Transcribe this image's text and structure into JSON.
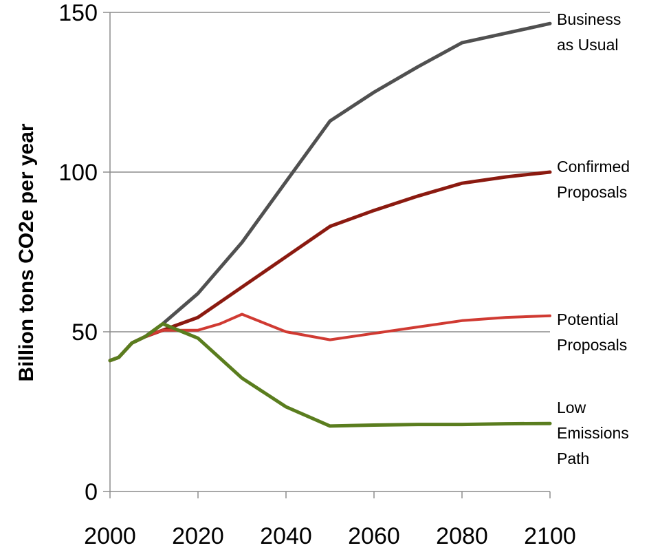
{
  "chart_data": {
    "type": "line",
    "title": "",
    "xlabel": "",
    "ylabel": "Billion tons CO2e per year",
    "xlim": [
      2000,
      2100
    ],
    "ylim": [
      0,
      150
    ],
    "x_ticks": [
      "2000",
      "2020",
      "2040",
      "2060",
      "2080",
      "2100"
    ],
    "y_ticks": [
      "0",
      "50",
      "100",
      "150"
    ],
    "grid": "horizontal",
    "legend": "none",
    "series": [
      {
        "name": "Business as Usual",
        "label_lines": [
          "Business",
          "as Usual"
        ],
        "color": "#505050",
        "x": [
          2000,
          2002,
          2005,
          2008,
          2012,
          2020,
          2030,
          2040,
          2050,
          2060,
          2070,
          2080,
          2090,
          2100
        ],
        "y": [
          41,
          42,
          46.5,
          48.5,
          52.5,
          62,
          78,
          97,
          116,
          125,
          133,
          140.5,
          143.5,
          146.5
        ]
      },
      {
        "name": "Confirmed Proposals",
        "label_lines": [
          "Confirmed",
          "Proposals"
        ],
        "color": "#8b1a10",
        "x": [
          2000,
          2002,
          2005,
          2008,
          2012,
          2020,
          2030,
          2040,
          2050,
          2060,
          2070,
          2080,
          2090,
          2100
        ],
        "y": [
          41,
          42,
          46.5,
          48.5,
          50.5,
          54.5,
          64,
          73.5,
          83,
          88,
          92.5,
          96.5,
          98.5,
          100
        ]
      },
      {
        "name": "Potential Proposals",
        "label_lines": [
          "Potential",
          "Proposals"
        ],
        "color": "#d03a32",
        "x": [
          2000,
          2002,
          2005,
          2008,
          2012,
          2020,
          2025,
          2030,
          2040,
          2050,
          2060,
          2070,
          2080,
          2090,
          2100
        ],
        "y": [
          41,
          42,
          46.5,
          48.5,
          50.5,
          50.5,
          52.5,
          55.5,
          50,
          47.5,
          49.5,
          51.5,
          53.5,
          54.5,
          55
        ]
      },
      {
        "name": "Low Emissions Path",
        "label_lines": [
          "Low",
          "Emissions",
          "Path"
        ],
        "color": "#5a7d1e",
        "x": [
          2000,
          2002,
          2005,
          2008,
          2012,
          2020,
          2030,
          2040,
          2050,
          2060,
          2070,
          2080,
          2090,
          2100
        ],
        "y": [
          41,
          42,
          46.5,
          48.5,
          52.5,
          48,
          35.5,
          26.5,
          20.5,
          20.8,
          21,
          21,
          21.2,
          21.3
        ]
      }
    ]
  }
}
